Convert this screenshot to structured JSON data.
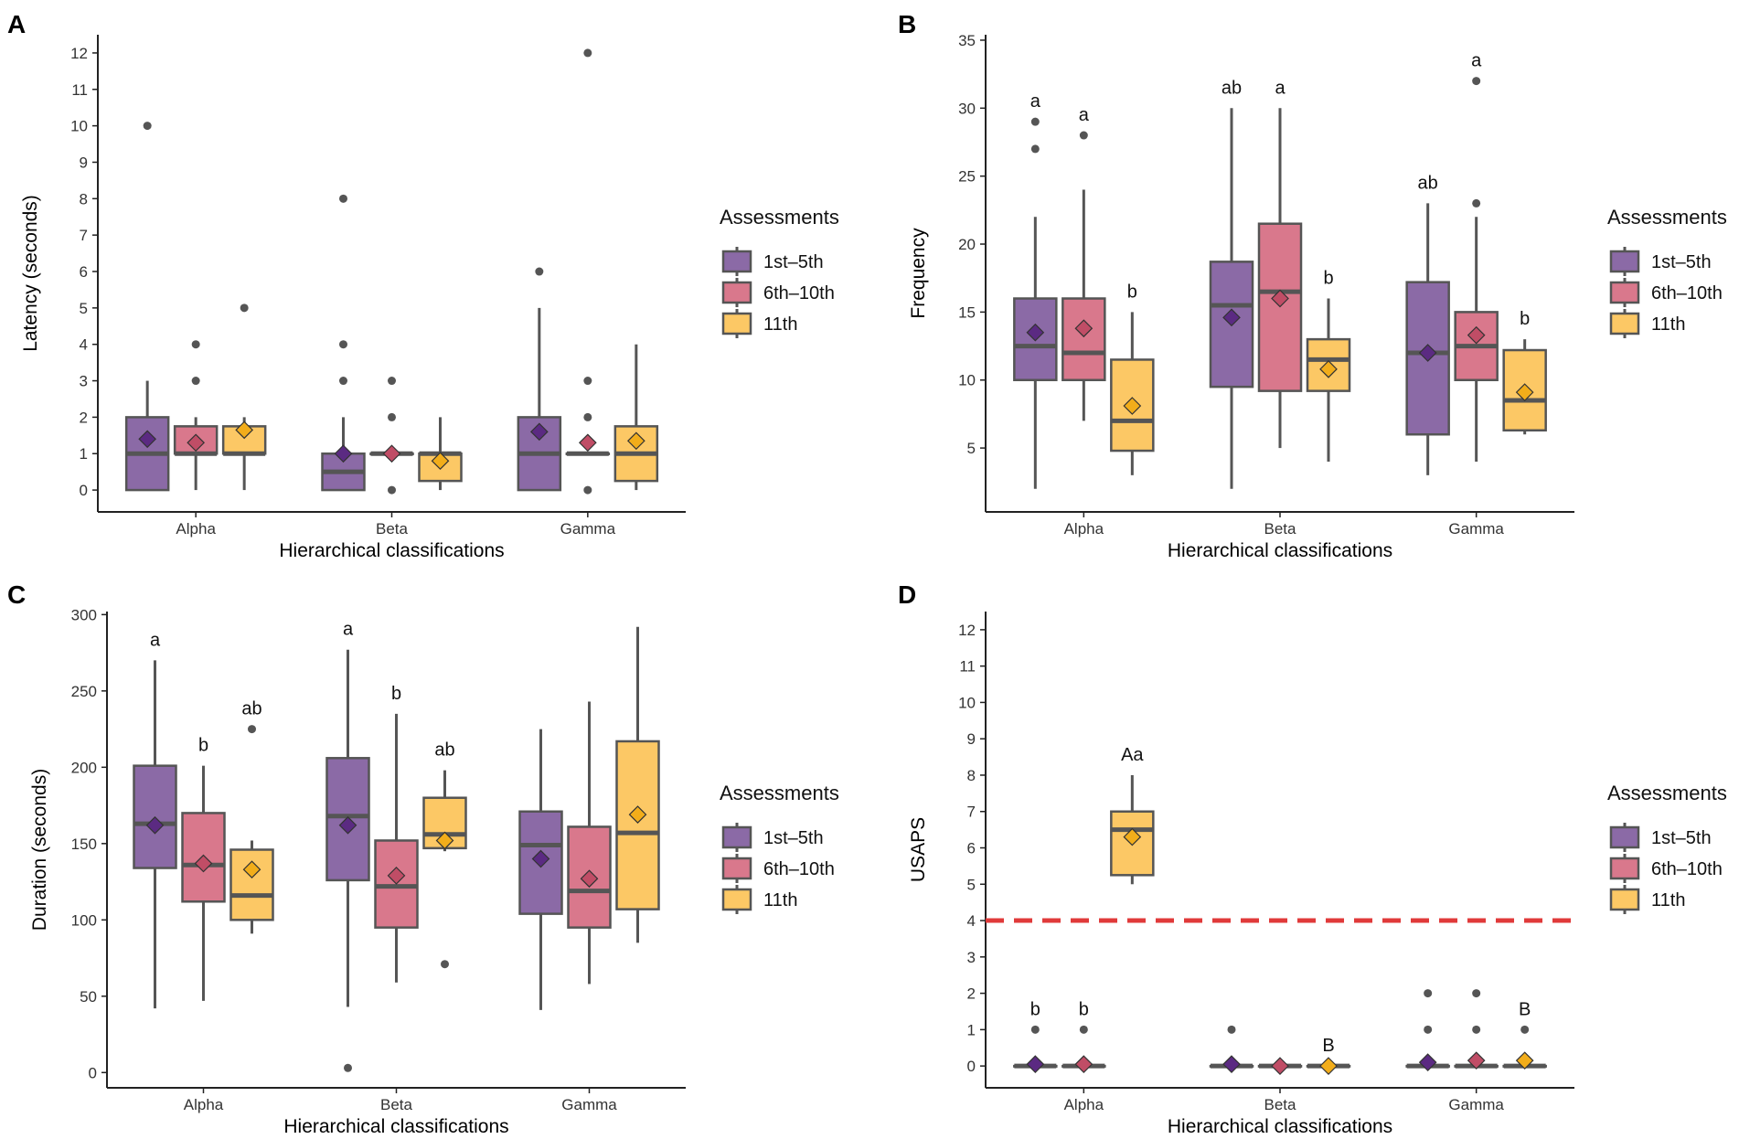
{
  "colors": {
    "group_fills": [
      "#8b6aa6",
      "#d9788c",
      "#fcc865"
    ],
    "mean_fills": [
      "#5b2a82",
      "#c04d66",
      "#f2ad1a"
    ],
    "box_stroke": "#555555",
    "outlier": "#555555",
    "ref_line": "#e03a3a"
  },
  "legend": {
    "title": "Assessments",
    "items": [
      "1st–5th",
      "6th–10th",
      "11th"
    ]
  },
  "chart_data": [
    {
      "panel_label": "A",
      "type": "box",
      "title": "",
      "xlabel": "Hierarchical classifications",
      "ylabel": "Latency (seconds)",
      "ylim": [
        -0.6,
        12.5
      ],
      "yticks": [
        0,
        1,
        2,
        3,
        4,
        5,
        6,
        7,
        8,
        9,
        10,
        11,
        12
      ],
      "grid": false,
      "legend_position": "right",
      "categories": [
        "Alpha",
        "Beta",
        "Gamma"
      ],
      "series": [
        {
          "name": "1st–5th",
          "boxes": [
            {
              "q1": 0,
              "median": 1,
              "q3": 2,
              "low": 0,
              "high": 3,
              "mean": 1.4,
              "outliers": [
                10
              ],
              "letter": ""
            },
            {
              "q1": 0,
              "median": 0.5,
              "q3": 1,
              "low": 0,
              "high": 2,
              "mean": 1.0,
              "outliers": [
                3,
                4,
                8
              ],
              "letter": ""
            },
            {
              "q1": 0,
              "median": 1,
              "q3": 2,
              "low": 0,
              "high": 5,
              "mean": 1.6,
              "outliers": [
                6
              ],
              "letter": ""
            }
          ]
        },
        {
          "name": "6th–10th",
          "boxes": [
            {
              "q1": 1,
              "median": 1,
              "q3": 1.75,
              "low": 0,
              "high": 2,
              "mean": 1.3,
              "outliers": [
                3,
                4
              ],
              "letter": ""
            },
            {
              "q1": 1,
              "median": 1,
              "q3": 1,
              "low": 1,
              "high": 1,
              "mean": 1.0,
              "outliers": [
                0,
                2,
                3
              ],
              "letter": ""
            },
            {
              "q1": 1,
              "median": 1,
              "q3": 1,
              "low": 1,
              "high": 1,
              "mean": 1.3,
              "outliers": [
                0,
                2,
                3,
                12
              ],
              "letter": ""
            }
          ]
        },
        {
          "name": "11th",
          "boxes": [
            {
              "q1": 1,
              "median": 1,
              "q3": 1.75,
              "low": 0,
              "high": 2,
              "mean": 1.65,
              "outliers": [
                5
              ],
              "letter": ""
            },
            {
              "q1": 0.25,
              "median": 1,
              "q3": 1,
              "low": 0,
              "high": 2,
              "mean": 0.8,
              "outliers": [],
              "letter": ""
            },
            {
              "q1": 0.25,
              "median": 1,
              "q3": 1.75,
              "low": 0,
              "high": 4,
              "mean": 1.35,
              "outliers": [],
              "letter": ""
            }
          ]
        }
      ]
    },
    {
      "panel_label": "B",
      "type": "box",
      "title": "",
      "xlabel": "Hierarchical classifications",
      "ylabel": "Frequency",
      "ylim": [
        0.3,
        35.4
      ],
      "yticks": [
        5,
        10,
        15,
        20,
        25,
        30,
        35
      ],
      "grid": false,
      "legend_position": "right",
      "categories": [
        "Alpha",
        "Beta",
        "Gamma"
      ],
      "series": [
        {
          "name": "1st–5th",
          "boxes": [
            {
              "q1": 10,
              "median": 12.5,
              "q3": 16,
              "low": 2,
              "high": 22,
              "mean": 13.5,
              "outliers": [
                27,
                29
              ],
              "letter": "a"
            },
            {
              "q1": 9.5,
              "median": 15.5,
              "q3": 18.7,
              "low": 2,
              "high": 30,
              "mean": 14.6,
              "outliers": [],
              "letter": "ab"
            },
            {
              "q1": 6,
              "median": 12,
              "q3": 17.2,
              "low": 3,
              "high": 23,
              "mean": 12,
              "outliers": [],
              "letter": "ab"
            }
          ]
        },
        {
          "name": "6th–10th",
          "boxes": [
            {
              "q1": 10,
              "median": 12,
              "q3": 16,
              "low": 7,
              "high": 24,
              "mean": 13.8,
              "outliers": [
                28
              ],
              "letter": "a"
            },
            {
              "q1": 9.2,
              "median": 16.5,
              "q3": 21.5,
              "low": 5,
              "high": 30,
              "mean": 16,
              "outliers": [],
              "letter": "a"
            },
            {
              "q1": 10,
              "median": 12.5,
              "q3": 15,
              "low": 4,
              "high": 22,
              "mean": 13.3,
              "outliers": [
                23,
                32
              ],
              "letter": "a"
            }
          ]
        },
        {
          "name": "11th",
          "boxes": [
            {
              "q1": 4.8,
              "median": 7,
              "q3": 11.5,
              "low": 3,
              "high": 15,
              "mean": 8.1,
              "outliers": [],
              "letter": "b"
            },
            {
              "q1": 9.2,
              "median": 11.5,
              "q3": 13,
              "low": 4,
              "high": 16,
              "mean": 10.8,
              "outliers": [],
              "letter": "b"
            },
            {
              "q1": 6.3,
              "median": 8.5,
              "q3": 12.2,
              "low": 6,
              "high": 13,
              "mean": 9.1,
              "outliers": [],
              "letter": "b"
            }
          ]
        }
      ]
    },
    {
      "panel_label": "C",
      "type": "box",
      "title": "",
      "xlabel": "Hierarchical classifications",
      "ylabel": "Duration (seconds)",
      "ylim": [
        -10,
        302
      ],
      "yticks": [
        0,
        50,
        100,
        150,
        200,
        250,
        300
      ],
      "grid": false,
      "legend_position": "right",
      "categories": [
        "Alpha",
        "Beta",
        "Gamma"
      ],
      "series": [
        {
          "name": "1st–5th",
          "boxes": [
            {
              "q1": 134,
              "median": 163,
              "q3": 201,
              "low": 42,
              "high": 270,
              "mean": 162,
              "outliers": [],
              "letter": "a"
            },
            {
              "q1": 126,
              "median": 168,
              "q3": 206,
              "low": 43,
              "high": 277,
              "mean": 162,
              "outliers": [
                3
              ],
              "letter": "a"
            },
            {
              "q1": 104,
              "median": 149,
              "q3": 171,
              "low": 41,
              "high": 225,
              "mean": 140,
              "outliers": [],
              "letter": ""
            }
          ]
        },
        {
          "name": "6th–10th",
          "boxes": [
            {
              "q1": 112,
              "median": 136,
              "q3": 170,
              "low": 47,
              "high": 201,
              "mean": 137,
              "outliers": [],
              "letter": "b"
            },
            {
              "q1": 95,
              "median": 122,
              "q3": 152,
              "low": 59,
              "high": 235,
              "mean": 129,
              "outliers": [],
              "letter": "b"
            },
            {
              "q1": 95,
              "median": 119,
              "q3": 161,
              "low": 58,
              "high": 243,
              "mean": 127,
              "outliers": [],
              "letter": ""
            }
          ]
        },
        {
          "name": "11th",
          "boxes": [
            {
              "q1": 100,
              "median": 116,
              "q3": 146,
              "low": 91,
              "high": 152,
              "mean": 133,
              "outliers": [
                225
              ],
              "letter": "ab"
            },
            {
              "q1": 147,
              "median": 156,
              "q3": 180,
              "low": 145,
              "high": 198,
              "mean": 152,
              "outliers": [
                71
              ],
              "letter": "ab"
            },
            {
              "q1": 107,
              "median": 157,
              "q3": 217,
              "low": 85,
              "high": 292,
              "mean": 169,
              "outliers": [],
              "letter": ""
            }
          ]
        }
      ]
    },
    {
      "panel_label": "D",
      "type": "box",
      "title": "",
      "xlabel": "Hierarchical classifications",
      "ylabel": "USAPS",
      "ylim": [
        -0.6,
        12.5
      ],
      "yticks": [
        0,
        1,
        2,
        3,
        4,
        5,
        6,
        7,
        8,
        9,
        10,
        11,
        12
      ],
      "grid": false,
      "legend_position": "right",
      "reference_line": 4,
      "categories": [
        "Alpha",
        "Beta",
        "Gamma"
      ],
      "series": [
        {
          "name": "1st–5th",
          "boxes": [
            {
              "q1": 0,
              "median": 0,
              "q3": 0,
              "low": 0,
              "high": 0,
              "mean": 0.05,
              "outliers": [
                1
              ],
              "letter": "b"
            },
            {
              "q1": 0,
              "median": 0,
              "q3": 0,
              "low": 0,
              "high": 0,
              "mean": 0.05,
              "outliers": [
                1
              ],
              "letter": ""
            },
            {
              "q1": 0,
              "median": 0,
              "q3": 0,
              "low": 0,
              "high": 0,
              "mean": 0.1,
              "outliers": [
                1,
                2
              ],
              "letter": ""
            }
          ]
        },
        {
          "name": "6th–10th",
          "boxes": [
            {
              "q1": 0,
              "median": 0,
              "q3": 0,
              "low": 0,
              "high": 0,
              "mean": 0.05,
              "outliers": [
                1
              ],
              "letter": "b"
            },
            {
              "q1": 0,
              "median": 0,
              "q3": 0,
              "low": 0,
              "high": 0,
              "mean": 0,
              "outliers": [],
              "letter": ""
            },
            {
              "q1": 0,
              "median": 0,
              "q3": 0,
              "low": 0,
              "high": 0,
              "mean": 0.15,
              "outliers": [
                1,
                2
              ],
              "letter": ""
            }
          ]
        },
        {
          "name": "11th",
          "boxes": [
            {
              "q1": 5.25,
              "median": 6.5,
              "q3": 7,
              "low": 5,
              "high": 8,
              "mean": 6.3,
              "outliers": [],
              "letter": "Aa"
            },
            {
              "q1": 0,
              "median": 0,
              "q3": 0,
              "low": 0,
              "high": 0,
              "mean": 0,
              "outliers": [],
              "letter": "B"
            },
            {
              "q1": 0,
              "median": 0,
              "q3": 0,
              "low": 0,
              "high": 0,
              "mean": 0.15,
              "outliers": [
                1
              ],
              "letter": "B"
            }
          ]
        }
      ]
    }
  ]
}
